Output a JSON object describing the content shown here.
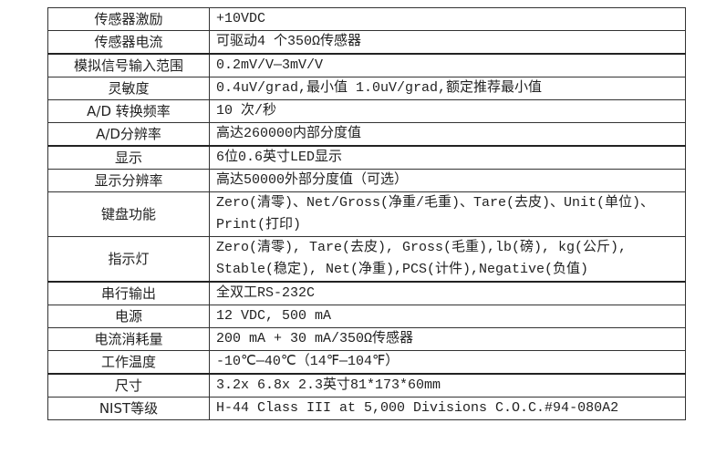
{
  "spec_table": {
    "rows": [
      {
        "label": "传感器激励",
        "value": "+10VDC"
      },
      {
        "label": "传感器电流",
        "value": "可驱动4 个350Ω传感器"
      },
      {
        "label": "模拟信号输入范围",
        "value": "0.2mV/V—3mV/V"
      },
      {
        "label": "灵敏度",
        "value": "0.4uV/grad,最小值 1.0uV/grad,额定推荐最小值"
      },
      {
        "label": "A/D  转换频率",
        "value": "10 次/秒"
      },
      {
        "label": "A/D分辨率",
        "value": "高达260000内部分度值"
      },
      {
        "label": "显示",
        "value": "6位0.6英寸LED显示"
      },
      {
        "label": "显示分辨率",
        "value": "高达50000外部分度值（可选）"
      },
      {
        "label": "键盘功能",
        "value": "Zero(清零)、Net/Gross(净重/毛重)、Tare(去皮)、Unit(单位)、Print(打印)"
      },
      {
        "label": "指示灯",
        "value": "Zero(清零), Tare(去皮), Gross(毛重),lb(磅), kg(公斤), Stable(稳定), Net(净重),PCS(计件),Negative(负值)"
      },
      {
        "label": "串行输出",
        "value": "全双工RS-232C"
      },
      {
        "label": "电源",
        "value": "12 VDC, 500 mA"
      },
      {
        "label": "电流消耗量",
        "value": "200 mA + 30 mA/350Ω传感器"
      },
      {
        "label": "工作温度",
        "value": "-10℃—40℃（14℉—104℉）"
      },
      {
        "label": "尺寸",
        "value": "3.2x 6.8x 2.3英寸81*173*60mm"
      },
      {
        "label": "NIST等级",
        "value": "H-44 Class III at 5,000 Divisions C.O.C.#94-080A2"
      }
    ]
  }
}
